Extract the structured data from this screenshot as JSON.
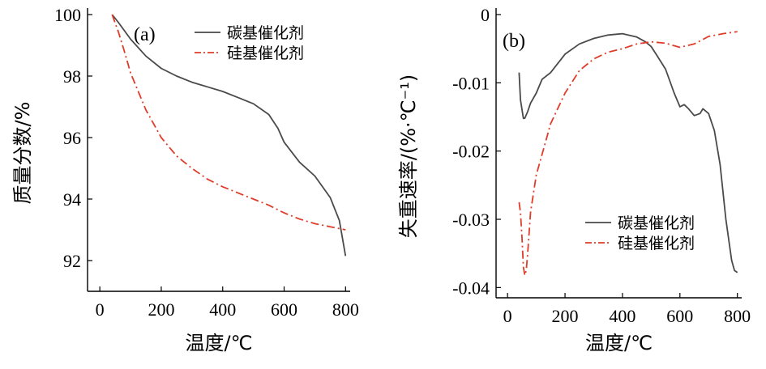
{
  "chart_data": [
    {
      "panel_label": "(a)",
      "type": "line",
      "xlabel": "温度/℃",
      "ylabel": "质量分数/%",
      "xlim": [
        -40,
        815
      ],
      "ylim": [
        91,
        100
      ],
      "x_ticks": [
        0,
        200,
        400,
        600,
        800
      ],
      "y_ticks": [
        92,
        94,
        96,
        98,
        100
      ],
      "y_tick_labels": [
        "92",
        "94",
        "96",
        "98",
        "100"
      ],
      "legend": "top-right",
      "series": [
        {
          "name": "碳基催化剂",
          "style": "solid",
          "color": "#4a4a4a",
          "x": [
            40,
            60,
            100,
            150,
            200,
            250,
            300,
            350,
            400,
            450,
            500,
            550,
            580,
            600,
            650,
            700,
            750,
            780,
            800
          ],
          "y": [
            100,
            99.75,
            99.2,
            98.65,
            98.25,
            98.0,
            97.8,
            97.65,
            97.5,
            97.3,
            97.1,
            96.75,
            96.3,
            95.85,
            95.2,
            94.75,
            94.05,
            93.3,
            92.15
          ]
        },
        {
          "name": "硅基催化剂",
          "style": "dash-dot",
          "color": "#e03c2a",
          "x": [
            40,
            60,
            80,
            100,
            150,
            200,
            250,
            300,
            350,
            400,
            450,
            500,
            550,
            600,
            650,
            700,
            750,
            800
          ],
          "y": [
            100,
            99.45,
            98.8,
            98.1,
            96.9,
            96.0,
            95.4,
            95.0,
            94.65,
            94.4,
            94.2,
            94.0,
            93.8,
            93.55,
            93.35,
            93.2,
            93.1,
            93.0
          ]
        }
      ]
    },
    {
      "panel_label": "(b)",
      "type": "line",
      "xlabel": "温度/℃",
      "ylabel": "失重速率/(%·℃⁻¹)",
      "xlim": [
        -40,
        815
      ],
      "ylim": [
        -0.0415,
        0
      ],
      "x_ticks": [
        0,
        200,
        400,
        600,
        800
      ],
      "y_ticks": [
        0,
        -0.01,
        -0.02,
        -0.03,
        -0.04
      ],
      "y_tick_labels": [
        "0",
        "-0.01",
        "-0.02",
        "-0.03",
        "-0.04"
      ],
      "legend": "bottom-right",
      "series": [
        {
          "name": "碳基催化剂",
          "style": "solid",
          "color": "#4a4a4a",
          "x": [
            40,
            45,
            55,
            60,
            70,
            80,
            100,
            120,
            150,
            200,
            250,
            300,
            350,
            400,
            450,
            480,
            500,
            520,
            550,
            580,
            600,
            615,
            630,
            650,
            670,
            680,
            700,
            720,
            740,
            760,
            780,
            790,
            800
          ],
          "y": [
            -0.0085,
            -0.0125,
            -0.0152,
            -0.0152,
            -0.0142,
            -0.013,
            -0.0115,
            -0.0095,
            -0.0085,
            -0.0058,
            -0.0043,
            -0.0035,
            -0.003,
            -0.0028,
            -0.0033,
            -0.004,
            -0.0047,
            -0.006,
            -0.008,
            -0.0115,
            -0.0135,
            -0.0132,
            -0.0138,
            -0.0148,
            -0.0145,
            -0.0138,
            -0.0145,
            -0.017,
            -0.022,
            -0.03,
            -0.036,
            -0.0375,
            -0.0378
          ]
        },
        {
          "name": "硅基催化剂",
          "style": "dash-dot",
          "color": "#e03c2a",
          "x": [
            40,
            45,
            50,
            55,
            60,
            65,
            70,
            80,
            100,
            120,
            150,
            200,
            250,
            300,
            350,
            400,
            450,
            500,
            550,
            600,
            650,
            700,
            750,
            800
          ],
          "y": [
            -0.0275,
            -0.029,
            -0.0325,
            -0.037,
            -0.0382,
            -0.0375,
            -0.035,
            -0.029,
            -0.0235,
            -0.0205,
            -0.016,
            -0.0115,
            -0.0082,
            -0.0065,
            -0.0055,
            -0.005,
            -0.0043,
            -0.004,
            -0.0042,
            -0.0048,
            -0.0043,
            -0.0032,
            -0.0028,
            -0.0025
          ]
        }
      ]
    }
  ]
}
